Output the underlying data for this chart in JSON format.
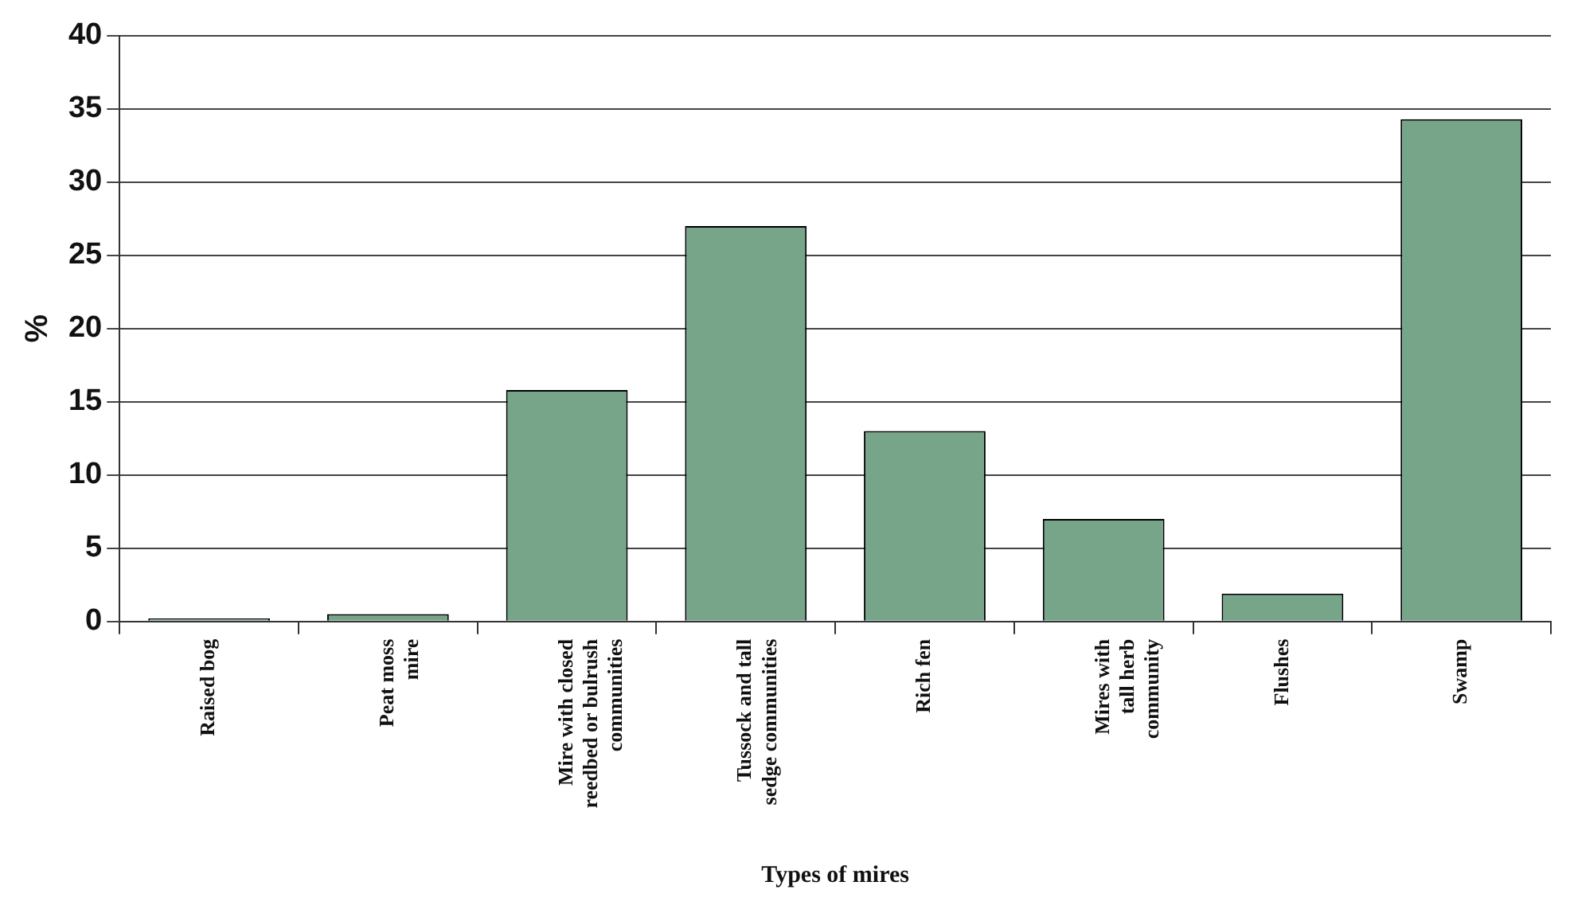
{
  "chart_data": {
    "type": "bar",
    "xlabel": "Types of mires",
    "ylabel": "%",
    "categories": [
      "Raised bog",
      "Peat moss\nmire",
      "Mire with closed\nreedbed or bulrush\ncommunities",
      "Tussock and tall\nsedge communities",
      "Rich fen",
      "Mires with\ntall herb\ncommunity",
      "Flushes",
      "Swamp"
    ],
    "values": [
      0.2,
      0.5,
      15.8,
      27,
      13,
      7,
      1.9,
      34.3
    ],
    "color": "#76a58a",
    "ylim": [
      0,
      40
    ],
    "yticks": [
      0,
      5,
      10,
      15,
      20,
      25,
      30,
      35,
      40
    ],
    "grid": "y",
    "legend": false
  }
}
